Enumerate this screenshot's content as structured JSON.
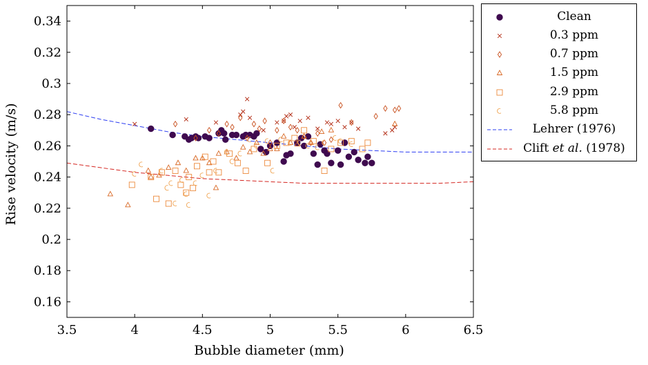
{
  "colors": {
    "clean": "#3f0a4f",
    "ppm03": "#b5331c",
    "ppm07": "#c8501e",
    "ppm15": "#d86824",
    "ppm29": "#ec8a3c",
    "ppm58": "#f0a656",
    "lehrer": "#2b3cf2",
    "clift": "#d4241f"
  },
  "chart_data": {
    "type": "scatter",
    "xlabel": "Bubble diameter (mm)",
    "ylabel": "Rise velocity (m/s)",
    "xlim": [
      3.5,
      6.5
    ],
    "ylim": [
      0.15,
      0.35
    ],
    "xticks": [
      "3.5",
      "4",
      "4.5",
      "5",
      "5.5",
      "6",
      "6.5"
    ],
    "yticks": [
      "0.16",
      "0.18",
      "0.2",
      "0.22",
      "0.24",
      "0.26",
      "0.28",
      "0.3",
      "0.32",
      "0.34"
    ],
    "grid": false,
    "legend_position": "outside-right",
    "series": [
      {
        "name": "Clean",
        "marker": "circle",
        "color_key": "clean",
        "x": [
          4.12,
          4.28,
          4.37,
          4.4,
          4.42,
          4.45,
          4.47,
          4.52,
          4.55,
          4.62,
          4.64,
          4.66,
          4.67,
          4.72,
          4.75,
          4.8,
          4.82,
          4.85,
          4.88,
          4.9,
          4.93,
          4.97,
          5.0,
          5.05,
          5.1,
          5.12,
          5.15,
          5.2,
          5.23,
          5.25,
          5.28,
          5.32,
          5.35,
          5.37,
          5.4,
          5.42,
          5.45,
          5.5,
          5.52,
          5.55,
          5.58,
          5.62,
          5.65,
          5.7,
          5.72,
          5.75
        ],
        "y": [
          0.271,
          0.267,
          0.266,
          0.264,
          0.265,
          0.266,
          0.265,
          0.266,
          0.265,
          0.268,
          0.27,
          0.268,
          0.264,
          0.267,
          0.267,
          0.266,
          0.267,
          0.267,
          0.266,
          0.268,
          0.258,
          0.256,
          0.26,
          0.262,
          0.25,
          0.254,
          0.255,
          0.262,
          0.265,
          0.26,
          0.266,
          0.255,
          0.248,
          0.261,
          0.257,
          0.255,
          0.249,
          0.257,
          0.248,
          0.262,
          0.253,
          0.256,
          0.251,
          0.249,
          0.253,
          0.249
        ]
      },
      {
        "name": "0.3 ppm",
        "marker": "x",
        "color_key": "ppm03",
        "x": [
          4.0,
          4.38,
          4.6,
          4.78,
          4.8,
          4.83,
          4.85,
          4.95,
          5.05,
          5.1,
          5.12,
          5.15,
          5.18,
          5.22,
          5.28,
          5.35,
          5.42,
          5.45,
          5.5,
          5.55,
          5.6,
          5.65,
          5.85,
          5.9,
          5.92
        ],
        "y": [
          0.274,
          0.277,
          0.275,
          0.28,
          0.282,
          0.29,
          0.278,
          0.27,
          0.275,
          0.276,
          0.279,
          0.28,
          0.272,
          0.276,
          0.278,
          0.271,
          0.275,
          0.274,
          0.276,
          0.272,
          0.275,
          0.271,
          0.268,
          0.27,
          0.272
        ]
      },
      {
        "name": "0.7 ppm",
        "marker": "diamond",
        "color_key": "ppm07",
        "x": [
          4.3,
          4.45,
          4.55,
          4.62,
          4.68,
          4.72,
          4.78,
          4.83,
          4.88,
          4.92,
          4.96,
          5.0,
          5.05,
          5.1,
          5.15,
          5.2,
          5.25,
          5.3,
          5.35,
          5.4,
          5.45,
          5.52,
          5.6,
          5.78,
          5.85,
          5.92,
          5.95
        ],
        "y": [
          0.274,
          0.265,
          0.27,
          0.268,
          0.274,
          0.272,
          0.278,
          0.265,
          0.274,
          0.271,
          0.276,
          0.262,
          0.27,
          0.276,
          0.272,
          0.27,
          0.266,
          0.262,
          0.268,
          0.262,
          0.264,
          0.286,
          0.275,
          0.279,
          0.284,
          0.283,
          0.284
        ]
      },
      {
        "name": "1.5 ppm",
        "marker": "triangle",
        "color_key": "ppm15",
        "x": [
          3.82,
          3.95,
          4.1,
          4.12,
          4.18,
          4.25,
          4.32,
          4.38,
          4.45,
          4.5,
          4.55,
          4.6,
          4.62,
          4.68,
          4.75,
          4.8,
          4.85,
          4.9,
          4.95,
          5.0,
          5.05,
          5.1,
          5.15,
          5.2,
          5.25,
          5.3,
          5.38,
          5.45,
          5.92
        ],
        "y": [
          0.229,
          0.222,
          0.244,
          0.24,
          0.241,
          0.246,
          0.249,
          0.244,
          0.252,
          0.252,
          0.249,
          0.233,
          0.255,
          0.256,
          0.252,
          0.259,
          0.256,
          0.262,
          0.255,
          0.258,
          0.258,
          0.266,
          0.262,
          0.261,
          0.266,
          0.262,
          0.269,
          0.27,
          0.274
        ]
      },
      {
        "name": "2.9 ppm",
        "marker": "square",
        "color_key": "ppm29",
        "x": [
          3.98,
          4.12,
          4.16,
          4.2,
          4.25,
          4.3,
          4.34,
          4.38,
          4.4,
          4.43,
          4.46,
          4.52,
          4.55,
          4.58,
          4.62,
          4.7,
          4.76,
          4.82,
          4.88,
          4.98,
          5.05,
          5.12,
          5.18,
          5.25,
          5.32,
          5.4,
          5.45,
          5.52,
          5.6,
          5.68,
          5.72
        ],
        "y": [
          0.235,
          0.24,
          0.226,
          0.243,
          0.223,
          0.244,
          0.235,
          0.23,
          0.24,
          0.233,
          0.247,
          0.253,
          0.243,
          0.25,
          0.243,
          0.255,
          0.249,
          0.244,
          0.258,
          0.249,
          0.26,
          0.262,
          0.265,
          0.27,
          0.263,
          0.244,
          0.258,
          0.262,
          0.263,
          0.258,
          0.262
        ]
      },
      {
        "name": "5.8 ppm",
        "marker": "crescent",
        "color_key": "ppm58",
        "x": [
          4.0,
          4.05,
          4.2,
          4.24,
          4.27,
          4.3,
          4.35,
          4.38,
          4.4,
          4.45,
          4.5,
          4.55,
          4.6,
          4.68,
          4.72,
          4.78,
          4.85,
          4.9,
          4.98,
          5.02,
          5.08,
          5.15,
          5.22,
          5.28,
          5.35,
          5.4,
          5.48,
          5.52,
          5.6
        ],
        "y": [
          0.242,
          0.248,
          0.244,
          0.233,
          0.236,
          0.223,
          0.238,
          0.229,
          0.222,
          0.236,
          0.241,
          0.228,
          0.244,
          0.256,
          0.25,
          0.255,
          0.264,
          0.26,
          0.263,
          0.244,
          0.264,
          0.262,
          0.262,
          0.26,
          0.259,
          0.262,
          0.265,
          0.263,
          0.261
        ]
      },
      {
        "name": "Lehrer (1976)",
        "line": "dashed",
        "color_key": "lehrer",
        "x": [
          3.5,
          3.75,
          4.0,
          4.25,
          4.5,
          4.75,
          5.0,
          5.25,
          5.5,
          5.75,
          6.0,
          6.25,
          6.5
        ],
        "y": [
          0.282,
          0.277,
          0.273,
          0.269,
          0.266,
          0.264,
          0.262,
          0.26,
          0.258,
          0.257,
          0.256,
          0.256,
          0.256
        ]
      },
      {
        "name": "Clift et al. (1978)",
        "line": "dashed",
        "color_key": "clift",
        "x": [
          3.5,
          3.75,
          4.0,
          4.25,
          4.5,
          4.75,
          5.0,
          5.25,
          5.5,
          5.75,
          6.0,
          6.25,
          6.5
        ],
        "y": [
          0.249,
          0.246,
          0.243,
          0.241,
          0.239,
          0.238,
          0.237,
          0.236,
          0.236,
          0.236,
          0.236,
          0.236,
          0.237
        ]
      }
    ]
  },
  "legend": {
    "items": [
      {
        "label": "Clean",
        "marker": "circle",
        "color_key": "clean"
      },
      {
        "label": "0.3 ppm",
        "marker": "x",
        "color_key": "ppm03"
      },
      {
        "label": "0.7 ppm",
        "marker": "diamond",
        "color_key": "ppm07"
      },
      {
        "label": "1.5 ppm",
        "marker": "triangle",
        "color_key": "ppm15"
      },
      {
        "label": "2.9 ppm",
        "marker": "square",
        "color_key": "ppm29"
      },
      {
        "label": "5.8 ppm",
        "marker": "crescent",
        "color_key": "ppm58"
      },
      {
        "label": "Lehrer (1976)",
        "marker": "dash",
        "color_key": "lehrer"
      }
    ],
    "clift": {
      "prefix": "Clift ",
      "italic": "et al.",
      "suffix": " (1978)",
      "marker": "dash",
      "color_key": "clift"
    }
  }
}
